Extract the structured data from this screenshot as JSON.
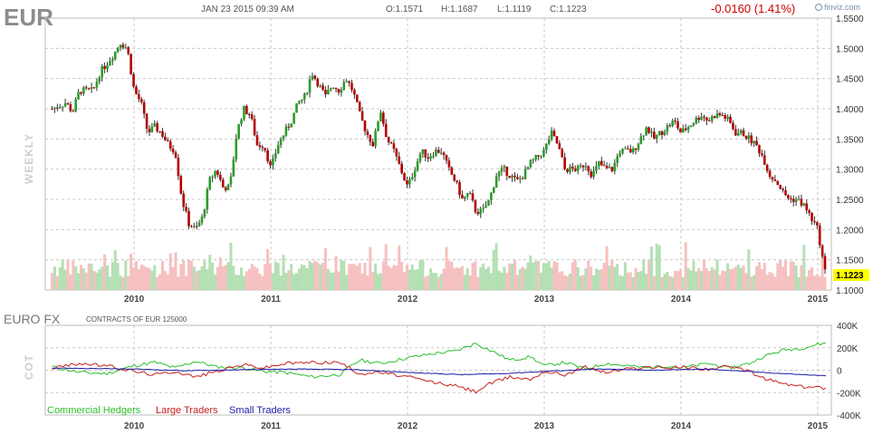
{
  "header": {
    "ticker": "EUR",
    "datetime": "JAN 23 2015 09:39 AM",
    "open": "O:1.1571",
    "high": "H:1.1687",
    "low": "L:1.1119",
    "close": "C:1.1223",
    "change": "-0.0160 (1.41%)",
    "brand": "finviz.com",
    "side_label": "WEEKLY"
  },
  "cot": {
    "title": "EURO FX",
    "subtitle": "CONTRACTS OF EUR 125000",
    "side_label": "COT"
  },
  "colors": {
    "up": "#2a9d2a",
    "down": "#b40000",
    "vol_up": "#b3e0b3",
    "vol_down": "#f6c0c0",
    "commercial": "#2bbf2b",
    "large": "#c81e1e",
    "small": "#1a1aa6",
    "grid": "#c8c8c8",
    "last_bg": "#ffff00"
  },
  "chart_data": [
    {
      "type": "candlestick",
      "title": "EUR",
      "ylim": [
        1.1,
        1.55
      ],
      "yticks": [
        "1.5500",
        "1.5000",
        "1.4500",
        "1.4000",
        "1.3500",
        "1.3000",
        "1.2500",
        "1.2000",
        "1.1500",
        "1.1000"
      ],
      "xticks": [
        "2010",
        "2011",
        "2012",
        "2013",
        "2014",
        "2015"
      ],
      "last_value": "1.1223",
      "close_path": [
        [
          2009.4,
          1.4
        ],
        [
          2009.5,
          1.41
        ],
        [
          2009.55,
          1.395
        ],
        [
          2009.6,
          1.43
        ],
        [
          2009.7,
          1.43
        ],
        [
          2009.75,
          1.46
        ],
        [
          2009.8,
          1.475
        ],
        [
          2009.85,
          1.49
        ],
        [
          2009.9,
          1.51
        ],
        [
          2009.95,
          1.5
        ],
        [
          2010.0,
          1.43
        ],
        [
          2010.05,
          1.41
        ],
        [
          2010.1,
          1.36
        ],
        [
          2010.15,
          1.37
        ],
        [
          2010.2,
          1.36
        ],
        [
          2010.25,
          1.34
        ],
        [
          2010.3,
          1.33
        ],
        [
          2010.35,
          1.25
        ],
        [
          2010.4,
          1.21
        ],
        [
          2010.45,
          1.2
        ],
        [
          2010.5,
          1.22
        ],
        [
          2010.55,
          1.28
        ],
        [
          2010.6,
          1.3
        ],
        [
          2010.65,
          1.27
        ],
        [
          2010.7,
          1.27
        ],
        [
          2010.75,
          1.36
        ],
        [
          2010.8,
          1.4
        ],
        [
          2010.85,
          1.39
        ],
        [
          2010.9,
          1.34
        ],
        [
          2010.95,
          1.34
        ],
        [
          2011.0,
          1.3
        ],
        [
          2011.05,
          1.34
        ],
        [
          2011.1,
          1.36
        ],
        [
          2011.15,
          1.38
        ],
        [
          2011.2,
          1.41
        ],
        [
          2011.25,
          1.42
        ],
        [
          2011.3,
          1.46
        ],
        [
          2011.35,
          1.44
        ],
        [
          2011.4,
          1.42
        ],
        [
          2011.45,
          1.44
        ],
        [
          2011.5,
          1.43
        ],
        [
          2011.55,
          1.45
        ],
        [
          2011.6,
          1.43
        ],
        [
          2011.65,
          1.39
        ],
        [
          2011.7,
          1.36
        ],
        [
          2011.75,
          1.34
        ],
        [
          2011.8,
          1.4
        ],
        [
          2011.85,
          1.35
        ],
        [
          2011.9,
          1.33
        ],
        [
          2011.95,
          1.3
        ],
        [
          2012.0,
          1.27
        ],
        [
          2012.05,
          1.3
        ],
        [
          2012.1,
          1.33
        ],
        [
          2012.15,
          1.32
        ],
        [
          2012.2,
          1.33
        ],
        [
          2012.25,
          1.33
        ],
        [
          2012.3,
          1.3
        ],
        [
          2012.35,
          1.28
        ],
        [
          2012.4,
          1.25
        ],
        [
          2012.45,
          1.26
        ],
        [
          2012.5,
          1.23
        ],
        [
          2012.55,
          1.23
        ],
        [
          2012.6,
          1.25
        ],
        [
          2012.65,
          1.29
        ],
        [
          2012.7,
          1.3
        ],
        [
          2012.75,
          1.29
        ],
        [
          2012.8,
          1.28
        ],
        [
          2012.85,
          1.29
        ],
        [
          2012.9,
          1.31
        ],
        [
          2012.95,
          1.32
        ],
        [
          2013.0,
          1.33
        ],
        [
          2013.05,
          1.36
        ],
        [
          2013.1,
          1.34
        ],
        [
          2013.15,
          1.3
        ],
        [
          2013.2,
          1.3
        ],
        [
          2013.25,
          1.3
        ],
        [
          2013.3,
          1.31
        ],
        [
          2013.35,
          1.29
        ],
        [
          2013.4,
          1.31
        ],
        [
          2013.45,
          1.3
        ],
        [
          2013.5,
          1.3
        ],
        [
          2013.55,
          1.33
        ],
        [
          2013.6,
          1.33
        ],
        [
          2013.65,
          1.33
        ],
        [
          2013.7,
          1.35
        ],
        [
          2013.75,
          1.37
        ],
        [
          2013.8,
          1.35
        ],
        [
          2013.85,
          1.36
        ],
        [
          2013.9,
          1.37
        ],
        [
          2013.95,
          1.38
        ],
        [
          2014.0,
          1.36
        ],
        [
          2014.05,
          1.37
        ],
        [
          2014.1,
          1.38
        ],
        [
          2014.15,
          1.39
        ],
        [
          2014.2,
          1.38
        ],
        [
          2014.25,
          1.39
        ],
        [
          2014.3,
          1.39
        ],
        [
          2014.35,
          1.38
        ],
        [
          2014.4,
          1.36
        ],
        [
          2014.45,
          1.36
        ],
        [
          2014.5,
          1.35
        ],
        [
          2014.55,
          1.34
        ],
        [
          2014.6,
          1.32
        ],
        [
          2014.65,
          1.29
        ],
        [
          2014.7,
          1.28
        ],
        [
          2014.75,
          1.26
        ],
        [
          2014.8,
          1.25
        ],
        [
          2014.85,
          1.25
        ],
        [
          2014.9,
          1.24
        ],
        [
          2014.95,
          1.22
        ],
        [
          2015.0,
          1.2
        ],
        [
          2015.03,
          1.16
        ],
        [
          2015.06,
          1.1223
        ]
      ]
    },
    {
      "type": "line",
      "title": "EURO FX",
      "ylim": [
        -400000,
        400000
      ],
      "yticks": [
        "400K",
        "200K",
        "0",
        "-200K",
        "-400K"
      ],
      "xticks": [
        "2010",
        "2011",
        "2012",
        "2013",
        "2014",
        "2015"
      ],
      "series": [
        {
          "name": "Commercial Hedgers",
          "color_key": "commercial",
          "points": [
            [
              2009.4,
              30000
            ],
            [
              2009.6,
              -20000
            ],
            [
              2009.8,
              -30000
            ],
            [
              2010.0,
              40000
            ],
            [
              2010.15,
              70000
            ],
            [
              2010.3,
              20000
            ],
            [
              2010.45,
              80000
            ],
            [
              2010.6,
              30000
            ],
            [
              2010.8,
              20000
            ],
            [
              2010.95,
              -10000
            ],
            [
              2011.1,
              -20000
            ],
            [
              2011.3,
              -60000
            ],
            [
              2011.5,
              -40000
            ],
            [
              2011.65,
              90000
            ],
            [
              2011.8,
              60000
            ],
            [
              2012.0,
              110000
            ],
            [
              2012.2,
              150000
            ],
            [
              2012.35,
              170000
            ],
            [
              2012.5,
              240000
            ],
            [
              2012.6,
              180000
            ],
            [
              2012.75,
              90000
            ],
            [
              2012.9,
              120000
            ],
            [
              2013.0,
              40000
            ],
            [
              2013.15,
              70000
            ],
            [
              2013.3,
              10000
            ],
            [
              2013.45,
              60000
            ],
            [
              2013.6,
              40000
            ],
            [
              2013.75,
              20000
            ],
            [
              2013.9,
              40000
            ],
            [
              2014.0,
              20000
            ],
            [
              2014.2,
              60000
            ],
            [
              2014.35,
              20000
            ],
            [
              2014.5,
              60000
            ],
            [
              2014.6,
              120000
            ],
            [
              2014.75,
              180000
            ],
            [
              2014.9,
              200000
            ],
            [
              2015.0,
              230000
            ],
            [
              2015.06,
              240000
            ]
          ]
        },
        {
          "name": "Large Traders",
          "color_key": "large",
          "points": [
            [
              2009.4,
              20000
            ],
            [
              2009.6,
              60000
            ],
            [
              2009.8,
              40000
            ],
            [
              2010.0,
              -10000
            ],
            [
              2010.15,
              -40000
            ],
            [
              2010.3,
              -10000
            ],
            [
              2010.45,
              -60000
            ],
            [
              2010.6,
              -10000
            ],
            [
              2010.8,
              50000
            ],
            [
              2010.95,
              20000
            ],
            [
              2011.1,
              60000
            ],
            [
              2011.3,
              70000
            ],
            [
              2011.5,
              70000
            ],
            [
              2011.65,
              -30000
            ],
            [
              2011.8,
              -20000
            ],
            [
              2012.0,
              -60000
            ],
            [
              2012.2,
              -110000
            ],
            [
              2012.35,
              -140000
            ],
            [
              2012.5,
              -190000
            ],
            [
              2012.6,
              -120000
            ],
            [
              2012.75,
              -60000
            ],
            [
              2012.9,
              -80000
            ],
            [
              2013.0,
              -10000
            ],
            [
              2013.15,
              -40000
            ],
            [
              2013.3,
              30000
            ],
            [
              2013.45,
              -20000
            ],
            [
              2013.6,
              10000
            ],
            [
              2013.75,
              30000
            ],
            [
              2013.9,
              20000
            ],
            [
              2014.0,
              30000
            ],
            [
              2014.2,
              10000
            ],
            [
              2014.35,
              30000
            ],
            [
              2014.5,
              -10000
            ],
            [
              2014.6,
              -70000
            ],
            [
              2014.75,
              -120000
            ],
            [
              2014.9,
              -150000
            ],
            [
              2015.0,
              -150000
            ],
            [
              2015.06,
              -160000
            ]
          ]
        },
        {
          "name": "Small Traders",
          "color_key": "small",
          "points": [
            [
              2009.4,
              20000
            ],
            [
              2009.7,
              15000
            ],
            [
              2010.0,
              10000
            ],
            [
              2010.4,
              -5000
            ],
            [
              2010.8,
              5000
            ],
            [
              2011.2,
              10000
            ],
            [
              2011.6,
              5000
            ],
            [
              2012.0,
              -20000
            ],
            [
              2012.4,
              -40000
            ],
            [
              2012.7,
              -30000
            ],
            [
              2013.0,
              -10000
            ],
            [
              2013.4,
              10000
            ],
            [
              2013.8,
              0
            ],
            [
              2014.2,
              10000
            ],
            [
              2014.6,
              -20000
            ],
            [
              2014.9,
              -40000
            ],
            [
              2015.06,
              -50000
            ]
          ]
        }
      ]
    }
  ]
}
